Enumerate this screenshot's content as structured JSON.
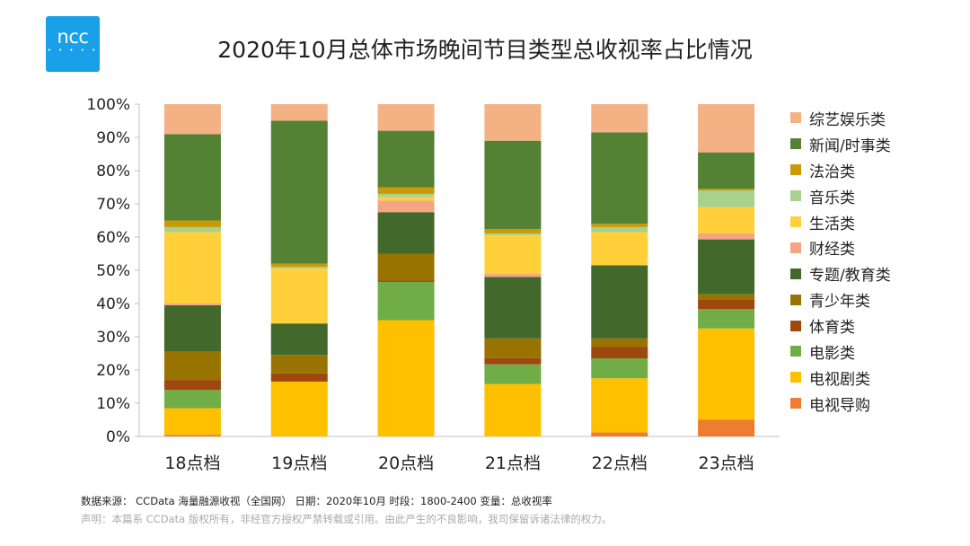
{
  "logo": {
    "text": "ncc",
    "dots": "• • • • •"
  },
  "footer": {
    "source": "数据来源： CCData 海量融源收视（全国网）   日期：2020年10月  时段：1800-2400  变量：总收视率",
    "notice": "声明：本篇系 CCData 版权所有，非经官方授权严禁转载或引用。由此产生的不良影响，我司保留诉诸法律的权力。"
  },
  "chart_data": {
    "type": "bar",
    "stacked": true,
    "title": "2020年10月总体市场晚间节目类型总收视率占比情况",
    "xlabel": "",
    "ylabel": "",
    "ylim": [
      0,
      100
    ],
    "yticks": [
      "0%",
      "10%",
      "20%",
      "30%",
      "40%",
      "50%",
      "60%",
      "70%",
      "80%",
      "90%",
      "100%"
    ],
    "grid": false,
    "legend_position": "right",
    "categories": [
      "18点档",
      "19点档",
      "20点档",
      "21点档",
      "22点档",
      "23点档"
    ],
    "series": [
      {
        "name": "电视导购",
        "color": "#ed7d31",
        "values": [
          0.5,
          0,
          0,
          0,
          1.2,
          5
        ]
      },
      {
        "name": "电视剧类",
        "color": "#ffc000",
        "values": [
          8,
          16.5,
          35,
          15.8,
          16.3,
          27.5
        ]
      },
      {
        "name": "电影类",
        "color": "#70ad47",
        "values": [
          5.5,
          0,
          11.5,
          5.9,
          6,
          5.8
        ]
      },
      {
        "name": "体育类",
        "color": "#9e480e",
        "values": [
          3,
          2.5,
          0.5,
          1.9,
          3.5,
          3
        ]
      },
      {
        "name": "青少年类",
        "color": "#997300",
        "values": [
          8.5,
          5.5,
          8,
          5.9,
          2.5,
          1.5
        ]
      },
      {
        "name": "专题/教育类",
        "color": "#43682b",
        "values": [
          14,
          9.5,
          12.5,
          18.5,
          22,
          16.5
        ]
      },
      {
        "name": "财经类",
        "color": "#f4a582",
        "values": [
          0.5,
          0,
          3.5,
          1,
          0,
          1.8
        ]
      },
      {
        "name": "生活类",
        "color": "#ffd03a",
        "values": [
          21.5,
          16.5,
          1,
          11.5,
          10,
          7.9
        ]
      },
      {
        "name": "音乐类",
        "color": "#a9d18e",
        "values": [
          1.5,
          0.5,
          1,
          0.6,
          1.5,
          5
        ]
      },
      {
        "name": "法治类",
        "color": "#c99a06",
        "values": [
          2,
          1,
          2,
          1.3,
          1,
          0.5
        ]
      },
      {
        "name": "新闻/时事类",
        "color": "#548235",
        "values": [
          26,
          43,
          17,
          26.6,
          27.5,
          11
        ]
      },
      {
        "name": "综艺娱乐类",
        "color": "#f4b183",
        "values": [
          9,
          5,
          8,
          11,
          8.5,
          14.5
        ]
      }
    ]
  }
}
